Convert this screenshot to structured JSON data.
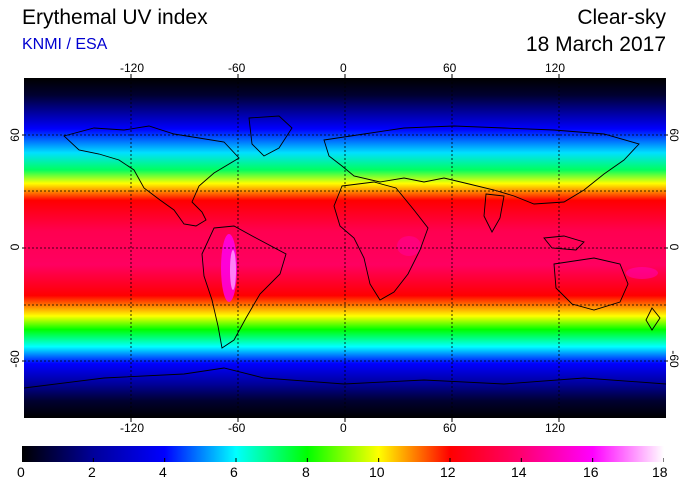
{
  "header": {
    "title": "Erythemal UV index",
    "source": "KNMI / ESA",
    "condition": "Clear-sky",
    "date": "18 March 2017"
  },
  "map": {
    "projection": "equirectangular",
    "lon_range": [
      -180,
      180
    ],
    "lat_range": [
      -90,
      90
    ],
    "lon_ticks": [
      "-120",
      "-60",
      "0",
      "60",
      "120"
    ],
    "lat_ticks": [
      "60",
      "0",
      "-60"
    ],
    "grid_style": "dashed",
    "background": "#000000"
  },
  "colorbar": {
    "min": 0,
    "max": 18,
    "labels": [
      "0",
      "2",
      "4",
      "6",
      "8",
      "10",
      "12",
      "14",
      "16",
      "18"
    ],
    "stops": [
      {
        "value": 0,
        "color": "#000000"
      },
      {
        "value": 2,
        "color": "#00009a"
      },
      {
        "value": 4,
        "color": "#0000ff"
      },
      {
        "value": 6,
        "color": "#00ffff"
      },
      {
        "value": 8,
        "color": "#00ff00"
      },
      {
        "value": 10,
        "color": "#ffff00"
      },
      {
        "value": 12,
        "color": "#ff0000"
      },
      {
        "value": 14,
        "color": "#ff0070"
      },
      {
        "value": 16,
        "color": "#ff00ff"
      },
      {
        "value": 18,
        "color": "#ffffff"
      }
    ]
  }
}
